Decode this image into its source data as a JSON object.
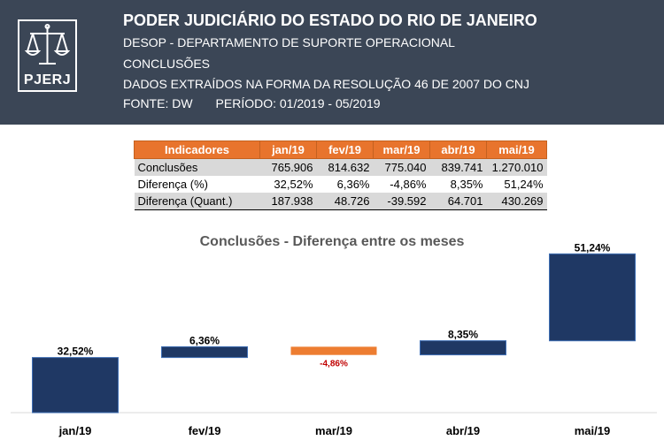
{
  "header": {
    "logo_text": "PJERJ",
    "title": "PODER JUDICIÁRIO DO ESTADO DO RIO DE JANEIRO",
    "line1": "DESOP - DEPARTAMENTO DE SUPORTE OPERACIONAL",
    "line2": "CONCLUSÕES",
    "line3": "DADOS EXTRAÍDOS NA FORMA DA RESOLUÇÃO 46 DE 2007 DO CNJ",
    "fonte": "FONTE: DW",
    "periodo": "PERÍODO: 01/2019 - 05/2019"
  },
  "table": {
    "headers": [
      "Indicadores",
      "jan/19",
      "fev/19",
      "mar/19",
      "abr/19",
      "mai/19"
    ],
    "rows": [
      [
        "Conclusões",
        "765.906",
        "814.632",
        "775.040",
        "839.741",
        "1.270.010"
      ],
      [
        "Diferença (%)",
        "32,52%",
        "6,36%",
        "-4,86%",
        "8,35%",
        "51,24%"
      ],
      [
        "Diferença (Quant.)",
        "187.938",
        "48.726",
        "-39.592",
        "64.701",
        "430.269"
      ]
    ]
  },
  "chart_data": {
    "type": "bar",
    "subtype": "waterfall",
    "title": "Conclusões - Diferença entre os meses",
    "categories": [
      "jan/19",
      "fev/19",
      "mar/19",
      "abr/19",
      "mai/19"
    ],
    "values": [
      32.52,
      6.36,
      -4.86,
      8.35,
      51.24
    ],
    "labels": [
      "32,52%",
      "6,36%",
      "-4,86%",
      "8,35%",
      "51,24%"
    ],
    "cumulative_end": [
      32.52,
      38.88,
      34.02,
      42.37,
      93.61
    ],
    "ylim": [
      0,
      100
    ],
    "colors": {
      "increase": "#1f3864",
      "decrease": "#ed7d31",
      "negative_label": "#c00000"
    },
    "grid": false,
    "legend": "none"
  }
}
